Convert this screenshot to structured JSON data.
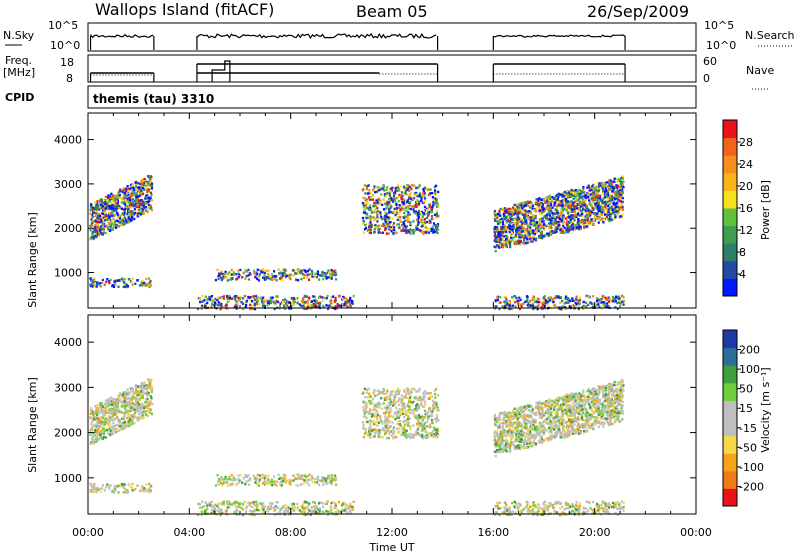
{
  "header": {
    "station": "Wallops Island (fitACF)",
    "beam": "Beam 05",
    "date": "26/Sep/2009"
  },
  "panels": {
    "noise": {
      "left_label": "N.Sky",
      "left_ticks": [
        "10^5",
        "10^0"
      ],
      "right_ticks": [
        "10^5",
        "10^0"
      ],
      "right_label": "N.Search"
    },
    "freq": {
      "left_label_1": "Freq.",
      "left_label_2": "[MHz]",
      "left_ticks": [
        "18",
        "8"
      ],
      "right_ticks": [
        "60",
        "0"
      ],
      "right_label": "Nave"
    },
    "cpid": {
      "label": "CPID",
      "value": "themis (tau) 3310"
    }
  },
  "chart_data": [
    {
      "type": "heatmap",
      "name": "power",
      "ylabel": "Slant Range [km]",
      "yticks": [
        1000,
        2000,
        3000,
        4000
      ],
      "ylim": [
        200,
        4600
      ],
      "xlim": [
        0,
        24
      ],
      "xticks": [
        "00:00",
        "04:00",
        "08:00",
        "12:00",
        "16:00",
        "20:00",
        "00:00"
      ],
      "colorbar": {
        "label": "Power [dB]",
        "ticks": [
          "4",
          "8",
          "12",
          "16",
          "20",
          "24",
          "28"
        ],
        "colors": [
          "#0018ff",
          "#2348a6",
          "#2f7e6a",
          "#3d9f4e",
          "#62c03a",
          "#f7e01b",
          "#f8b418",
          "#f58f1b",
          "#f0641c",
          "#e8141a"
        ]
      },
      "scatter_regions": [
        {
          "x": [
            0.05,
            2.5
          ],
          "range_km": [
            1750,
            3250
          ],
          "trend": "rising"
        },
        {
          "x": [
            0.05,
            2.5
          ],
          "range_km": [
            700,
            900
          ]
        },
        {
          "x": [
            4.3,
            10.5
          ],
          "range_km": [
            200,
            500
          ]
        },
        {
          "x": [
            5.0,
            9.8
          ],
          "range_km": [
            850,
            1100
          ]
        },
        {
          "x": [
            10.8,
            13.8
          ],
          "range_km": [
            1900,
            3000
          ]
        },
        {
          "x": [
            16.0,
            21.1
          ],
          "range_km": [
            1500,
            3200
          ],
          "trend": "rising"
        },
        {
          "x": [
            16.0,
            21.1
          ],
          "range_km": [
            200,
            500
          ]
        }
      ]
    },
    {
      "type": "heatmap",
      "name": "velocity",
      "ylabel": "Slant Range [km]",
      "yticks": [
        1000,
        2000,
        3000,
        4000
      ],
      "ylim": [
        200,
        4600
      ],
      "xlim": [
        0,
        24
      ],
      "xlabel": "Time UT",
      "xticks": [
        "00:00",
        "04:00",
        "08:00",
        "12:00",
        "16:00",
        "20:00",
        "00:00"
      ],
      "colorbar": {
        "label": "Velocity [m s⁻¹]",
        "ticks": [
          "200",
          "100",
          "50",
          "15",
          "-15",
          "-50",
          "-100",
          "-200"
        ],
        "colors": [
          "#1f3aa8",
          "#2b6f9a",
          "#3f9e3e",
          "#6fcf3a",
          "#bfbfbf",
          "#bfbfbf",
          "#f7d84a",
          "#f6a318",
          "#f07a18",
          "#e8141a"
        ]
      }
    }
  ]
}
